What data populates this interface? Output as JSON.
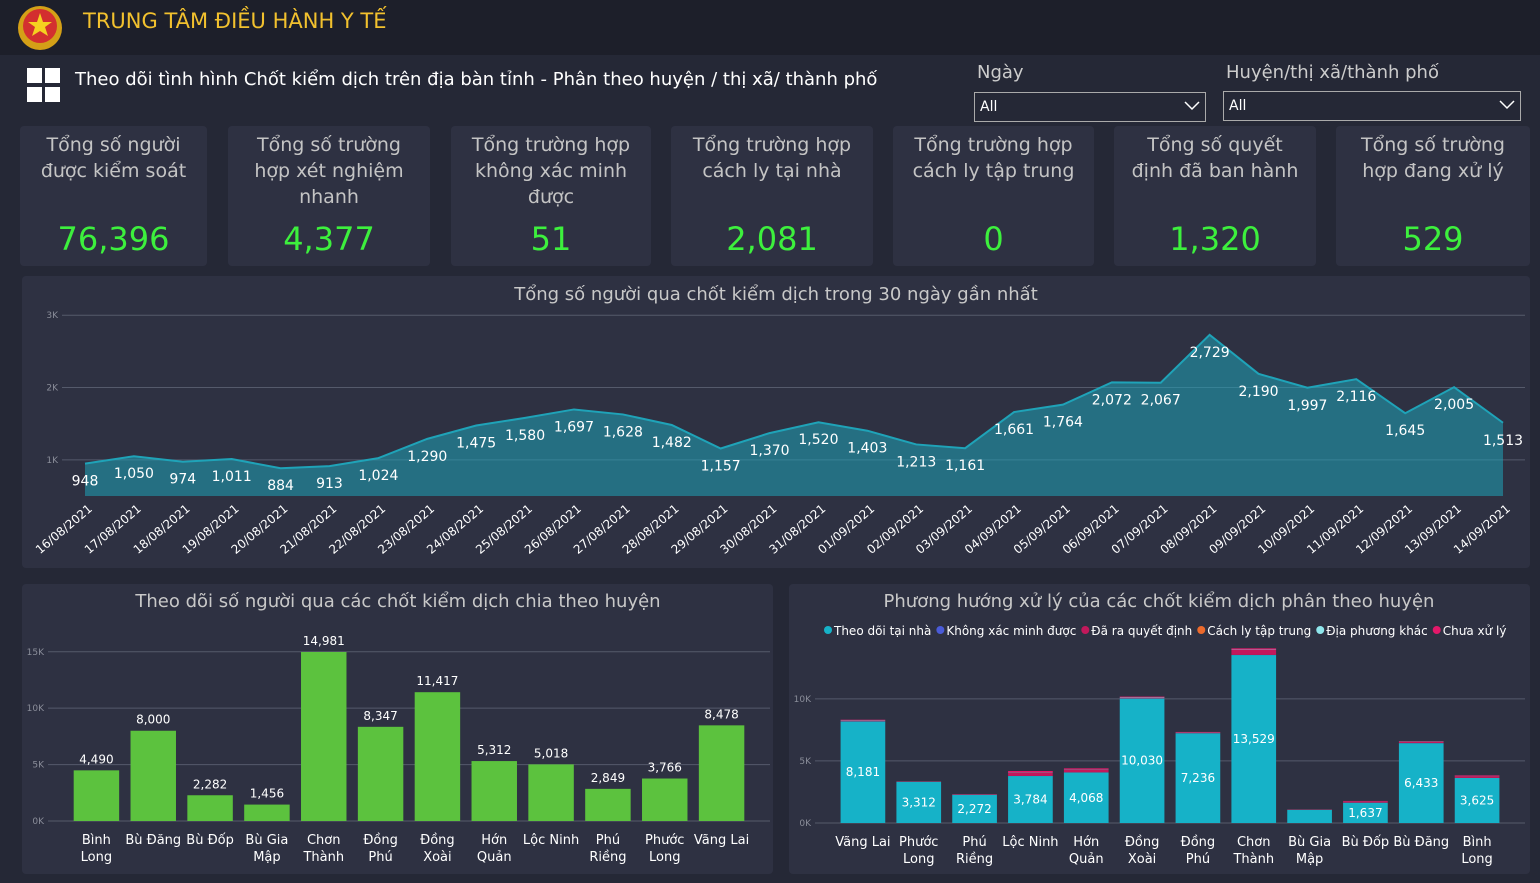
{
  "header": {
    "title": "TRUNG TÂM ĐIỀU HÀNH Y TẾ",
    "subtitle": "Theo dõi tình hình Chốt kiểm dịch trên địa bàn tỉnh - Phân theo huyện / thị xã/ thành phố"
  },
  "filters": [
    {
      "label": "Ngày",
      "value": "All"
    },
    {
      "label": "Huyện/thị xã/thành phố",
      "value": "All"
    }
  ],
  "kpis": [
    {
      "label": "Tổng số người được kiểm soát",
      "value": "76,396"
    },
    {
      "label": "Tổng số trường hợp xét nghiệm nhanh",
      "value": "4,377"
    },
    {
      "label": "Tổng trường hợp không xác minh được",
      "value": "51"
    },
    {
      "label": "Tổng trường hợp cách ly tại nhà",
      "value": "2,081"
    },
    {
      "label": "Tổng trường hợp cách ly tập trung",
      "value": "0"
    },
    {
      "label": "Tổng số quyết định đã ban hành",
      "value": "1,320"
    },
    {
      "label": "Tổng số trường hợp đang xử lý",
      "value": "529"
    }
  ],
  "chart_data": [
    {
      "type": "area",
      "title": "Tổng số người qua chốt kiểm dịch trong 30 ngày gần nhất",
      "color": "#1fa3b8",
      "categories": [
        "16/08/2021",
        "17/08/2021",
        "18/08/2021",
        "19/08/2021",
        "20/08/2021",
        "21/08/2021",
        "22/08/2021",
        "23/08/2021",
        "24/08/2021",
        "25/08/2021",
        "26/08/2021",
        "27/08/2021",
        "28/08/2021",
        "29/08/2021",
        "30/08/2021",
        "31/08/2021",
        "01/09/2021",
        "02/09/2021",
        "03/09/2021",
        "04/09/2021",
        "05/09/2021",
        "06/09/2021",
        "07/09/2021",
        "08/09/2021",
        "09/09/2021",
        "10/09/2021",
        "11/09/2021",
        "12/09/2021",
        "13/09/2021",
        "14/09/2021"
      ],
      "values": [
        948,
        1050,
        974,
        1011,
        884,
        913,
        1024,
        1290,
        1475,
        1580,
        1697,
        1628,
        1482,
        1157,
        1370,
        1520,
        1403,
        1213,
        1161,
        1661,
        1764,
        2072,
        2067,
        2729,
        2190,
        1997,
        2116,
        1645,
        2005,
        1513
      ],
      "value_labels": [
        "948",
        "1,050",
        "974",
        "1,011",
        "884",
        "913",
        "1,024",
        "1,290",
        "1,475",
        "1,580",
        "1,697",
        "1,628",
        "1,482",
        "1,157",
        "1,370",
        "1,520",
        "1,403",
        "1,213",
        "1,161",
        "1,661",
        "1,764",
        "2,072",
        "2,067",
        "2,729",
        "2,190",
        "1,997",
        "2,116",
        "1,645",
        "2,005",
        "1,513"
      ],
      "ylim": [
        500,
        3100
      ],
      "yticks": [
        {
          "value": 1000,
          "label": "1K"
        },
        {
          "value": 2000,
          "label": "2K"
        },
        {
          "value": 3000,
          "label": "3K"
        }
      ],
      "grid": true
    },
    {
      "type": "bar",
      "title": "Theo dõi số người qua các chốt kiểm dịch chia theo huyện",
      "color": "#5cc23e",
      "categories": [
        "Bình Long",
        "Bù Đăng",
        "Bù Đốp",
        "Bù Gia Mập",
        "Chơn Thành",
        "Đồng Phú",
        "Đồng Xoài",
        "Hớn Quản",
        "Lộc Ninh",
        "Phú Riềng",
        "Phước Long",
        "Vãng Lai"
      ],
      "values": [
        4490,
        8000,
        2282,
        1456,
        14981,
        8347,
        11417,
        5312,
        5018,
        2849,
        3766,
        8478
      ],
      "value_labels": [
        "4,490",
        "8,000",
        "2,282",
        "1,456",
        "14,981",
        "8,347",
        "11,417",
        "5,312",
        "5,018",
        "2,849",
        "3,766",
        "8,478"
      ],
      "ylim": [
        0,
        15600
      ],
      "yticks": [
        {
          "value": 0,
          "label": "0K"
        },
        {
          "value": 5000,
          "label": "5K"
        },
        {
          "value": 10000,
          "label": "10K"
        },
        {
          "value": 15000,
          "label": "15K"
        }
      ],
      "grid": true
    },
    {
      "type": "stacked-bar",
      "title": "Phương hướng xử lý của các chốt kiểm dịch phân theo huyện",
      "categories": [
        "Vãng Lai",
        "Phước Long",
        "Phú Riềng",
        "Lộc Ninh",
        "Hớn Quản",
        "Đồng Xoài",
        "Đồng Phú",
        "Chơn Thành",
        "Bù Gia Mập",
        "Bù Đốp",
        "Bù Đăng",
        "Bình Long"
      ],
      "series": [
        {
          "name": "Theo dõi tại nhà",
          "color": "#16b2c8",
          "values": [
            8181,
            3312,
            2272,
            3784,
            4068,
            10030,
            7236,
            13529,
            1050,
            1637,
            6433,
            3625
          ],
          "value_labels": [
            "8,181",
            "3,312",
            "2,272",
            "3,784",
            "4,068",
            "10,030",
            "7,236",
            "13,529",
            null,
            "1,637",
            "6,433",
            "3,625"
          ]
        },
        {
          "name": "Không xác minh được",
          "color": "#4a5bd8",
          "values": [
            10,
            0,
            0,
            5,
            5,
            5,
            0,
            10,
            0,
            0,
            5,
            5
          ]
        },
        {
          "name": "Đã ra quyết định",
          "color": "#c2185b",
          "values": [
            80,
            20,
            40,
            300,
            250,
            80,
            60,
            400,
            20,
            100,
            100,
            150
          ]
        },
        {
          "name": "Cách ly tập trung",
          "color": "#ec6a2c",
          "values": [
            0,
            0,
            0,
            0,
            0,
            0,
            0,
            0,
            0,
            0,
            0,
            0
          ]
        },
        {
          "name": "Địa phương khác",
          "color": "#8fe6ec",
          "values": [
            30,
            10,
            10,
            20,
            20,
            40,
            20,
            30,
            10,
            10,
            20,
            20
          ]
        },
        {
          "name": "Chưa xử lý",
          "color": "#e3186a",
          "values": [
            20,
            10,
            10,
            80,
            60,
            30,
            20,
            100,
            10,
            30,
            30,
            40
          ]
        }
      ],
      "ylim": [
        0,
        14500
      ],
      "yticks": [
        {
          "value": 0,
          "label": "0K"
        },
        {
          "value": 5000,
          "label": "5K"
        },
        {
          "value": 10000,
          "label": "10K"
        }
      ],
      "grid": true,
      "legend": "top"
    }
  ]
}
